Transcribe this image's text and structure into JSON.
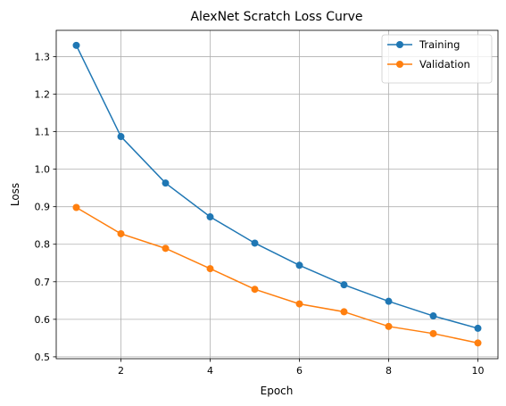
{
  "chart_data": {
    "type": "line",
    "title": "AlexNet Scratch Loss Curve",
    "xlabel": "Epoch",
    "ylabel": "Loss",
    "x": [
      1,
      2,
      3,
      4,
      5,
      6,
      7,
      8,
      9,
      10
    ],
    "xlim": [
      0.55,
      10.45
    ],
    "ylim": [
      0.495,
      1.37
    ],
    "xticks": [
      2,
      4,
      6,
      8,
      10
    ],
    "yticks": [
      0.5,
      0.6,
      0.7,
      0.8,
      0.9,
      1.0,
      1.1,
      1.2,
      1.3
    ],
    "grid": true,
    "legend_position": "top-right",
    "series": [
      {
        "name": "Training",
        "color": "#1f77b4",
        "marker": "circle",
        "values": [
          1.33,
          1.087,
          0.963,
          0.873,
          0.803,
          0.744,
          0.692,
          0.648,
          0.609,
          0.576
        ]
      },
      {
        "name": "Validation",
        "color": "#ff7f0e",
        "marker": "circle",
        "values": [
          0.898,
          0.828,
          0.789,
          0.735,
          0.68,
          0.641,
          0.62,
          0.581,
          0.562,
          0.537
        ]
      }
    ]
  }
}
